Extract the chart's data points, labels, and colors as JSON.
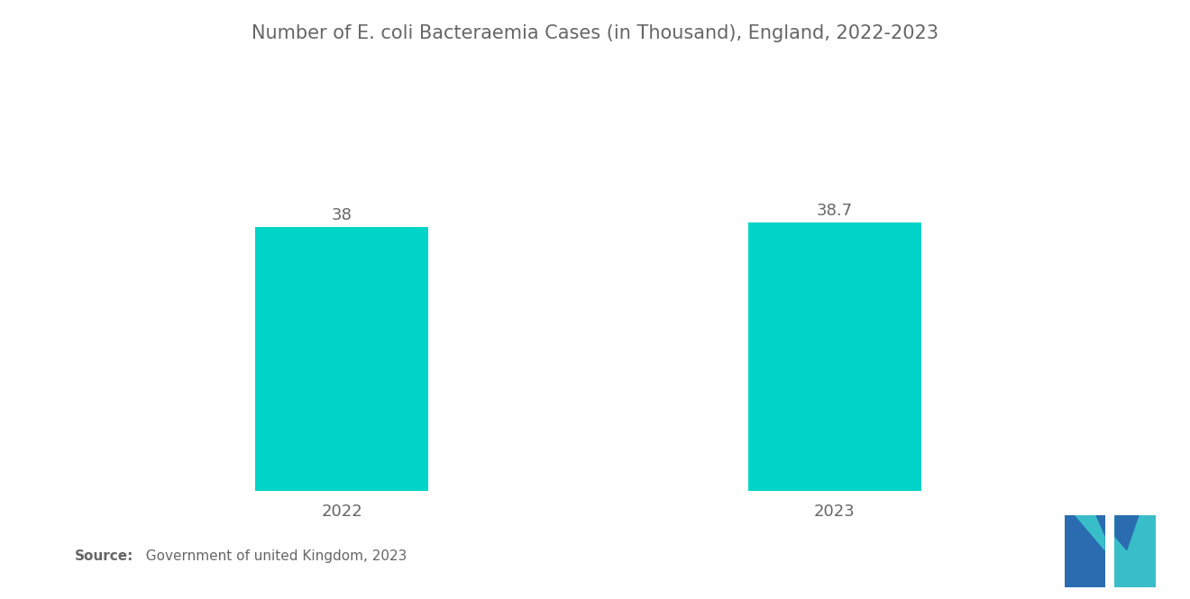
{
  "title": "Number of E. coli Bacteraemia Cases (in Thousand), England, 2022-2023",
  "categories": [
    "2022",
    "2023"
  ],
  "values": [
    38,
    38.7
  ],
  "bar_color": "#00D4C8",
  "background_color": "#ffffff",
  "title_fontsize": 15,
  "label_fontsize": 13,
  "value_fontsize": 13,
  "source_bold": "Source:",
  "source_rest": "  Government of united Kingdom, 2023",
  "ylim": [
    0,
    50
  ],
  "bar_width": 0.35,
  "logo_blue": "#2B6CB0",
  "logo_teal": "#38BEC9"
}
